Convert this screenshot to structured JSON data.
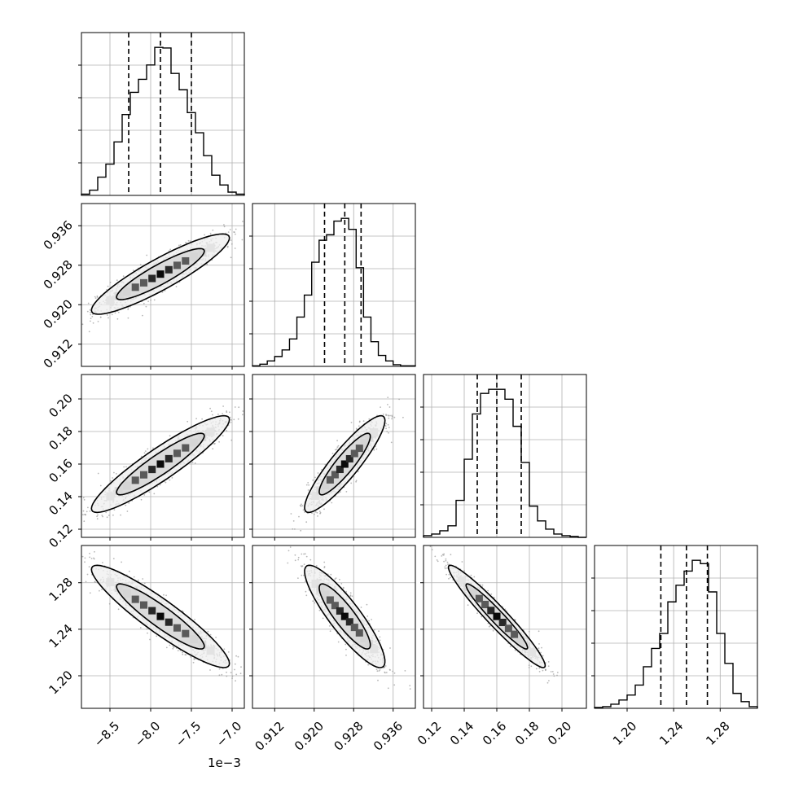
{
  "chart_data": {
    "type": "corner",
    "parameters": [
      {
        "range": [
          -8.85,
          -6.85
        ],
        "ticks": [
          -8.5,
          -8.0,
          -7.5,
          -7.0
        ],
        "tick_labels": [
          "−8.5",
          "−8.0",
          "−7.5",
          "−7.0"
        ],
        "scale_label": "1e−3",
        "quantiles": [
          -8.27,
          -7.88,
          -7.5
        ],
        "hist_bins": [
          -8.85,
          -8.75,
          -8.65,
          -8.55,
          -8.45,
          -8.35,
          -8.25,
          -8.15,
          -8.05,
          -7.95,
          -7.85,
          -7.75,
          -7.65,
          -7.55,
          -7.45,
          -7.35,
          -7.25,
          -7.15,
          -7.05,
          -6.95,
          -6.85
        ],
        "hist_counts": [
          2,
          8,
          28,
          48,
          82,
          124,
          158,
          178,
          200,
          227,
          226,
          187,
          162,
          127,
          96,
          61,
          31,
          16,
          5,
          2
        ]
      },
      {
        "range": [
          0.9075,
          0.9405
        ],
        "ticks": [
          0.912,
          0.92,
          0.928,
          0.936
        ],
        "tick_labels": [
          "0.912",
          "0.920",
          "0.928",
          "0.936"
        ],
        "quantiles": [
          0.9221,
          0.9262,
          0.9295
        ],
        "hist_bins": [
          0.9075,
          0.909,
          0.9105,
          0.912,
          0.9135,
          0.915,
          0.9165,
          0.918,
          0.9195,
          0.921,
          0.9225,
          0.924,
          0.9255,
          0.927,
          0.9285,
          0.93,
          0.9315,
          0.933,
          0.9345,
          0.936,
          0.9375,
          0.9405
        ],
        "hist_counts": [
          1,
          4,
          10,
          18,
          30,
          50,
          90,
          130,
          190,
          230,
          240,
          265,
          270,
          250,
          180,
          90,
          45,
          20,
          10,
          3,
          1
        ]
      },
      {
        "range": [
          0.115,
          0.215
        ],
        "ticks": [
          0.12,
          0.14,
          0.16,
          0.18,
          0.2
        ],
        "tick_labels": [
          "0.12",
          "0.14",
          "0.16",
          "0.18",
          "0.20"
        ],
        "quantiles": [
          0.148,
          0.16,
          0.175
        ],
        "hist_bins": [
          0.115,
          0.12,
          0.125,
          0.13,
          0.135,
          0.14,
          0.145,
          0.15,
          0.155,
          0.16,
          0.165,
          0.17,
          0.175,
          0.18,
          0.185,
          0.19,
          0.195,
          0.2,
          0.205,
          0.21,
          0.215
        ],
        "hist_counts": [
          2,
          4,
          8,
          14,
          45,
          95,
          150,
          175,
          180,
          180,
          168,
          135,
          91,
          38,
          20,
          10,
          4,
          2,
          1,
          0
        ]
      },
      {
        "range": [
          1.172,
          1.312
        ],
        "ticks": [
          1.2,
          1.24,
          1.28
        ],
        "tick_labels": [
          "1.20",
          "1.24",
          "1.28"
        ],
        "quantiles": [
          1.229,
          1.251,
          1.269
        ],
        "hist_bins": [
          1.172,
          1.179,
          1.186,
          1.193,
          1.2,
          1.207,
          1.214,
          1.221,
          1.228,
          1.235,
          1.242,
          1.249,
          1.256,
          1.263,
          1.27,
          1.277,
          1.284,
          1.291,
          1.298,
          1.305,
          1.312
        ],
        "hist_counts": [
          1,
          2,
          5,
          10,
          16,
          28,
          50,
          72,
          90,
          128,
          148,
          165,
          178,
          174,
          140,
          90,
          54,
          18,
          8,
          2
        ]
      }
    ],
    "pairs": [
      {
        "row": 1,
        "col": 0,
        "correlation": 0.9
      },
      {
        "row": 2,
        "col": 0,
        "correlation": 0.92
      },
      {
        "row": 2,
        "col": 1,
        "correlation": 0.9
      },
      {
        "row": 3,
        "col": 0,
        "correlation": -0.92
      },
      {
        "row": 3,
        "col": 1,
        "correlation": -0.88
      },
      {
        "row": 3,
        "col": 2,
        "correlation": -0.96
      }
    ],
    "grid": true,
    "colors": {
      "hist": "#000000",
      "contour": "#000000",
      "points": "#9a9a9a",
      "grid": "#b0b0b0"
    }
  }
}
